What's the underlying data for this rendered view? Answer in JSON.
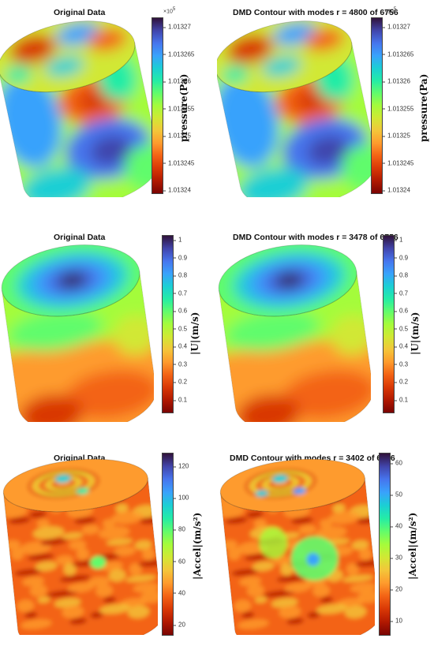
{
  "colormap": [
    "#30123b",
    "#4145ab",
    "#4675ed",
    "#39a2fc",
    "#1bcfd4",
    "#24eca6",
    "#61fc6c",
    "#a4fc3b",
    "#d1e834",
    "#f3c63a",
    "#fe9b2d",
    "#f36315",
    "#d93806",
    "#b11901",
    "#7a0403"
  ],
  "rows": [
    {
      "label": "pressure(Pa)",
      "multiplier_base": "×10",
      "multiplier_exp": "5",
      "ticks": [
        "1.01327",
        "1.013265",
        "1.01326",
        "1.013255",
        "1.01325",
        "1.013245",
        "1.01324"
      ],
      "panels": [
        {
          "title": "Original Data",
          "pattern": "pressure"
        },
        {
          "title": "DMD Contour with modes r = 4800 of 6756",
          "pattern": "pressure"
        }
      ]
    },
    {
      "label": "|U|(m/s)",
      "multiplier_base": "",
      "multiplier_exp": "",
      "ticks": [
        "1",
        "0.9",
        "0.8",
        "0.7",
        "0.6",
        "0.5",
        "0.4",
        "0.3",
        "0.2",
        "0.1"
      ],
      "panels": [
        {
          "title": "Original Data",
          "pattern": "velocity"
        },
        {
          "title": "DMD Contour with modes r = 3478 of 6756",
          "pattern": "velocity"
        }
      ]
    },
    {
      "label": "|Accel|(m/s²)",
      "multiplier_base": "",
      "multiplier_exp": "",
      "ticks_left": [
        "120",
        "100",
        "80",
        "60",
        "40",
        "20"
      ],
      "ticks_right": [
        "60",
        "50",
        "40",
        "30",
        "20",
        "10"
      ],
      "panels": [
        {
          "title": "Original Data",
          "pattern": "accel"
        },
        {
          "title": "DMD Contour with modes r = 3402 of 6756",
          "pattern": "accel2"
        }
      ]
    }
  ]
}
